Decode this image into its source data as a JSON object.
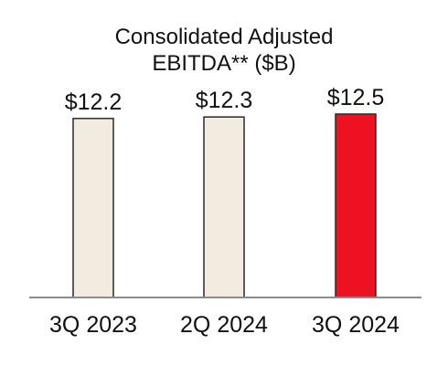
{
  "chart_data": {
    "type": "bar",
    "title_lines": [
      "Consolidated Adjusted",
      "EBITDA** ($B)"
    ],
    "categories": [
      "3Q 2023",
      "2Q 2024",
      "3Q 2024"
    ],
    "values": [
      12.2,
      12.3,
      12.5
    ],
    "value_labels": [
      "$12.2",
      "$12.3",
      "$12.5"
    ],
    "bar_colors": [
      "#f2ece0",
      "#f2ece0",
      "#ee1122"
    ],
    "bar_outline_color": "#2a2a2a",
    "baseline_color": "#8c8c8c",
    "xlabel": "",
    "ylabel": "",
    "ylim": [
      0,
      12.5
    ],
    "grid": false,
    "legend": "none"
  }
}
